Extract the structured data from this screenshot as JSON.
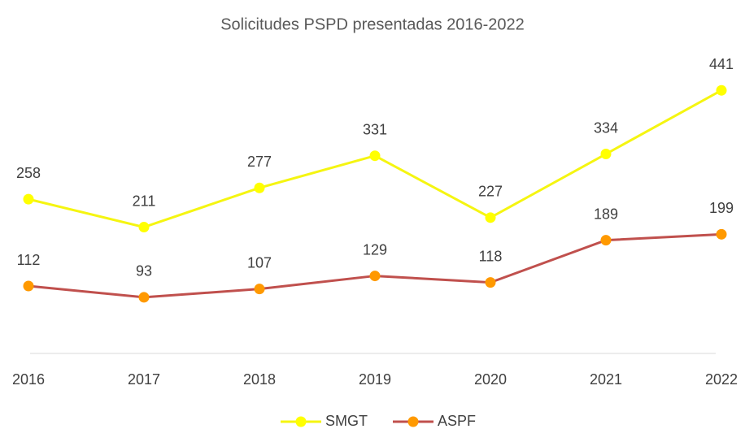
{
  "chart_data": {
    "type": "line",
    "title": "Solicitudes PSPD presentadas 2016-2022",
    "categories": [
      "2016",
      "2017",
      "2018",
      "2019",
      "2020",
      "2021",
      "2022"
    ],
    "series": [
      {
        "name": "SMGT",
        "color": "#f5f511",
        "marker_color": "#ffff00",
        "values": [
          258,
          211,
          277,
          331,
          227,
          334,
          441
        ]
      },
      {
        "name": "ASPF",
        "color": "#c0504d",
        "marker_color": "#ff9900",
        "values": [
          112,
          93,
          107,
          129,
          118,
          189,
          199
        ]
      }
    ],
    "ylim": [
      0,
      500
    ],
    "grid": false,
    "legend": "bottom",
    "data_labels": true
  }
}
